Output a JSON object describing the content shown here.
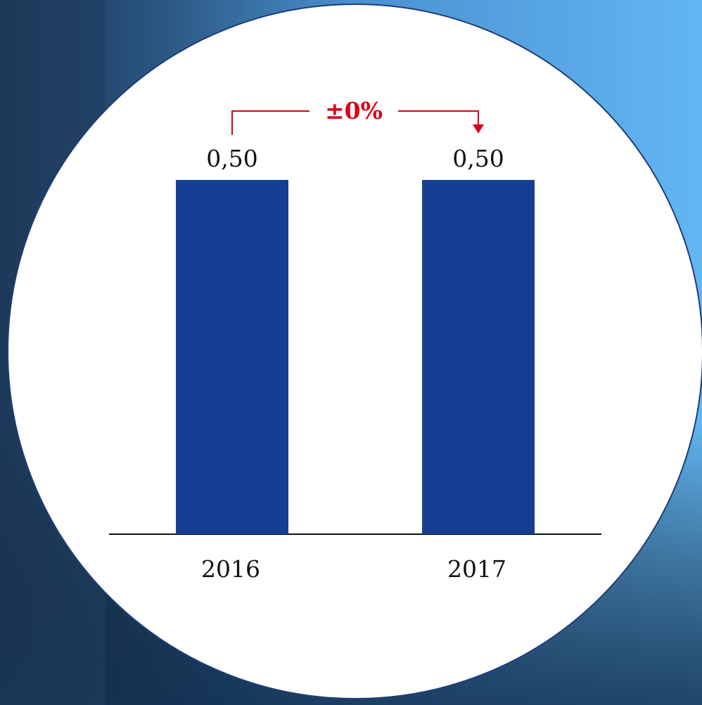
{
  "chart_data": {
    "type": "bar",
    "categories": [
      "2016",
      "2017"
    ],
    "values": [
      0.5,
      0.5
    ],
    "value_labels": [
      "0,50",
      "0,50"
    ],
    "color": "#163f94",
    "annotation": "±0%",
    "annotation_color": "#d9001b"
  }
}
